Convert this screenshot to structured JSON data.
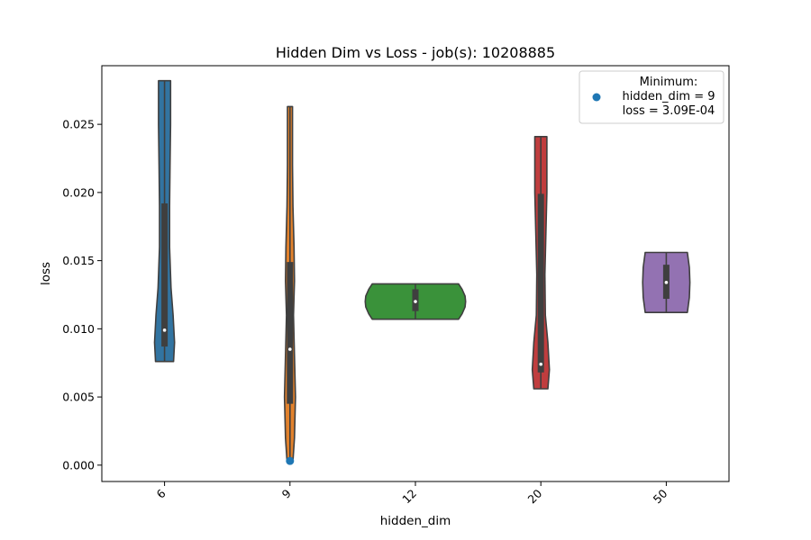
{
  "chart_data": {
    "type": "violin",
    "title": "Hidden Dim vs Loss - job(s): 10208885",
    "xlabel": "hidden_dim",
    "ylabel": "loss",
    "ylim": [
      -0.0012,
      0.0293
    ],
    "yticks": [
      "0.000",
      "0.005",
      "0.010",
      "0.015",
      "0.020",
      "0.025"
    ],
    "categories": [
      "6",
      "9",
      "12",
      "20",
      "50"
    ],
    "violins": [
      {
        "category": "6",
        "color": "#3274a1",
        "min": 0.0076,
        "max": 0.0282,
        "q1": 0.0087,
        "median": 0.0099,
        "q3": 0.0192,
        "profile": [
          [
            0.0076,
            0.18
          ],
          [
            0.009,
            0.2
          ],
          [
            0.011,
            0.17
          ],
          [
            0.013,
            0.13
          ],
          [
            0.016,
            0.1
          ],
          [
            0.019,
            0.1
          ],
          [
            0.022,
            0.11
          ],
          [
            0.025,
            0.12
          ],
          [
            0.0282,
            0.12
          ]
        ]
      },
      {
        "category": "9",
        "color": "#e1812c",
        "min": 0.0003,
        "max": 0.0263,
        "q1": 0.0045,
        "median": 0.0085,
        "q3": 0.0149,
        "profile": [
          [
            0.0003,
            0.06
          ],
          [
            0.002,
            0.09
          ],
          [
            0.005,
            0.11
          ],
          [
            0.008,
            0.09
          ],
          [
            0.011,
            0.07
          ],
          [
            0.0135,
            0.09
          ],
          [
            0.016,
            0.08
          ],
          [
            0.019,
            0.06
          ],
          [
            0.022,
            0.05
          ],
          [
            0.0263,
            0.05
          ]
        ]
      },
      {
        "category": "12",
        "color": "#3a923a",
        "min": 0.0107,
        "max": 0.0133,
        "q1": 0.0113,
        "median": 0.012,
        "q3": 0.0129,
        "profile": [
          [
            0.0107,
            0.86
          ],
          [
            0.0111,
            0.93
          ],
          [
            0.0116,
            0.99
          ],
          [
            0.012,
            1.0
          ],
          [
            0.0124,
            0.99
          ],
          [
            0.0129,
            0.93
          ],
          [
            0.0133,
            0.86
          ]
        ]
      },
      {
        "category": "20",
        "color": "#c03d3e",
        "min": 0.0056,
        "max": 0.0241,
        "q1": 0.0068,
        "median": 0.0074,
        "q3": 0.0199,
        "profile": [
          [
            0.0056,
            0.14
          ],
          [
            0.007,
            0.17
          ],
          [
            0.009,
            0.14
          ],
          [
            0.011,
            0.09
          ],
          [
            0.014,
            0.08
          ],
          [
            0.017,
            0.1
          ],
          [
            0.02,
            0.12
          ],
          [
            0.0241,
            0.12
          ]
        ]
      },
      {
        "category": "50",
        "color": "#9372b2",
        "min": 0.0112,
        "max": 0.0156,
        "q1": 0.0122,
        "median": 0.0134,
        "q3": 0.0147,
        "profile": [
          [
            0.0112,
            0.42
          ],
          [
            0.0123,
            0.46
          ],
          [
            0.0134,
            0.47
          ],
          [
            0.0145,
            0.46
          ],
          [
            0.0156,
            0.42
          ]
        ]
      }
    ],
    "minimum_point": {
      "category": "9",
      "value": 0.000309,
      "color": "#1f77b4"
    },
    "legend": {
      "placement": "top-right",
      "lines": [
        "Minimum:",
        "hidden_dim = 9",
        "loss = 3.09E-04"
      ]
    }
  }
}
